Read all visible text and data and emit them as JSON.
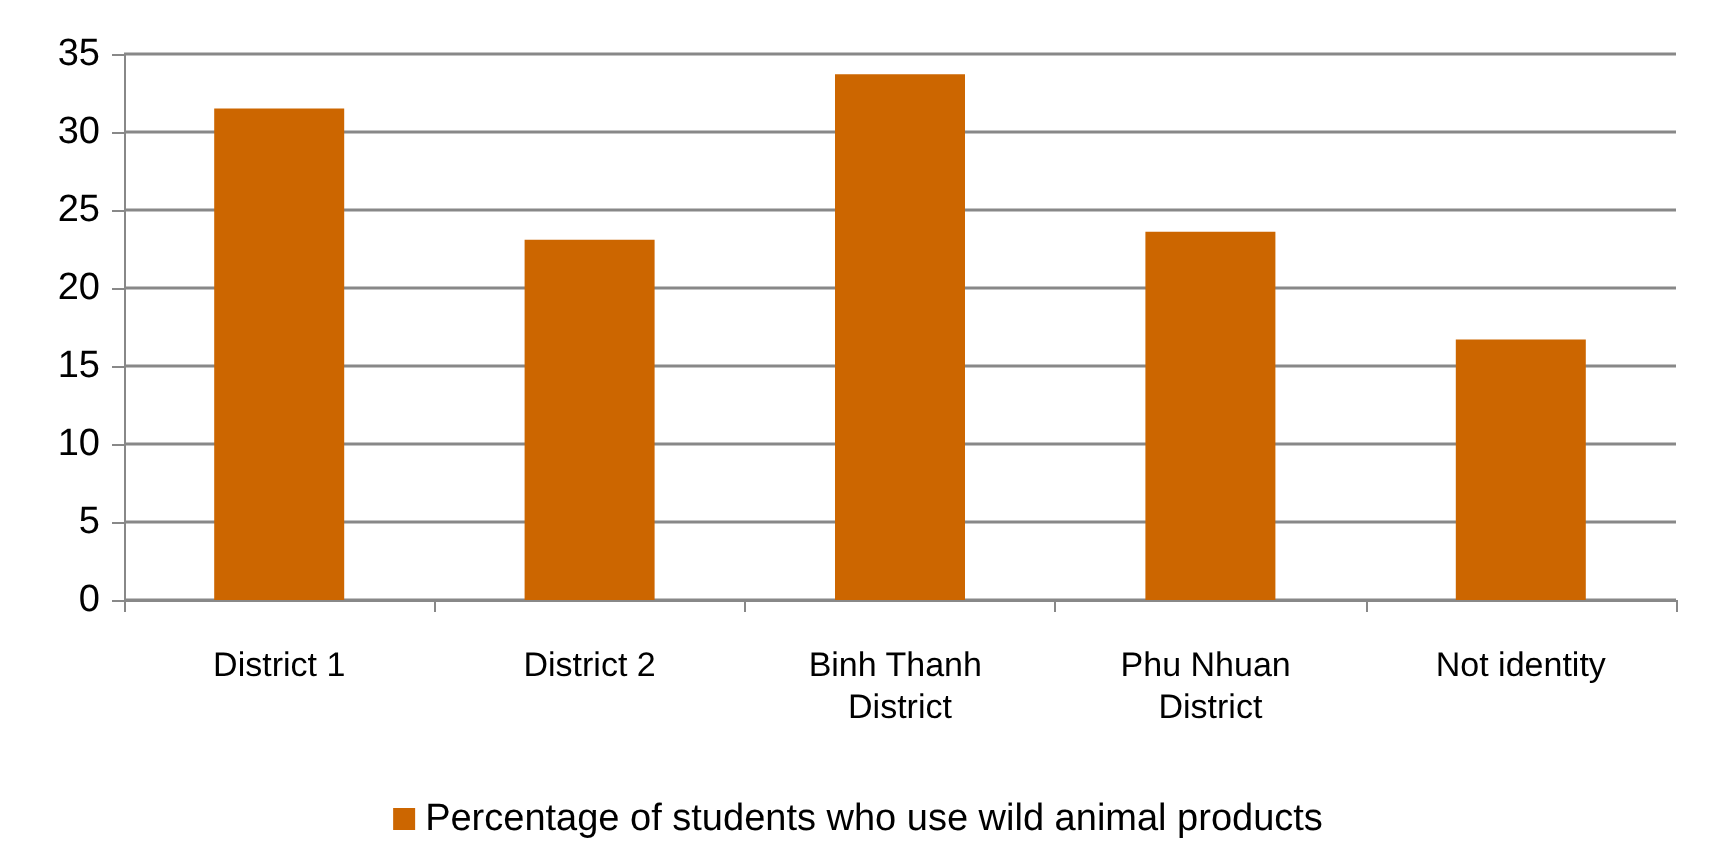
{
  "chart_data": {
    "type": "bar",
    "categories": [
      "District 1",
      "District 2",
      "Binh Thanh District",
      "Phu Nhuan District",
      "Not identity"
    ],
    "series": [
      {
        "name": "Percentage of students who use wild animal products",
        "color": "#cc6600",
        "values": [
          31.5,
          23.1,
          33.7,
          23.6,
          16.7
        ]
      }
    ],
    "ylim": [
      0,
      35
    ],
    "yticks": [
      0,
      5,
      10,
      15,
      20,
      25,
      30,
      35
    ],
    "grid": "y",
    "legend": "bottom"
  }
}
